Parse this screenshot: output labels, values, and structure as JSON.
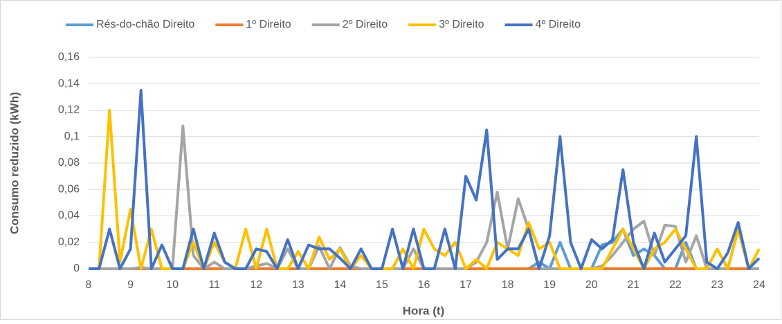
{
  "chart_data": {
    "type": "line",
    "y_label": "Consumo reduzido (kWh)",
    "x_label": "Hora (t)",
    "categories": [
      "8",
      null,
      null,
      null,
      "9",
      null,
      null,
      null,
      "10",
      null,
      null,
      null,
      "11",
      null,
      null,
      null,
      "12",
      null,
      null,
      null,
      "13",
      null,
      null,
      null,
      "14",
      null,
      null,
      null,
      "15",
      null,
      null,
      null,
      "16",
      null,
      null,
      null,
      "17",
      null,
      null,
      null,
      "18",
      null,
      null,
      null,
      "19",
      null,
      null,
      null,
      "20",
      null,
      null,
      null,
      "21",
      null,
      null,
      null,
      "22",
      null,
      null,
      null,
      "23",
      null,
      null,
      null,
      "24"
    ],
    "series": [
      {
        "name": "Rés-do-chão Direito",
        "color": "#5b9bd5",
        "values": [
          0,
          0,
          0,
          0,
          0,
          0,
          0,
          0,
          0,
          0,
          0,
          0,
          0,
          0,
          0,
          0,
          0,
          0,
          0,
          0,
          0,
          0,
          0,
          0,
          0,
          0,
          0,
          0,
          0,
          0,
          0,
          0,
          0,
          0,
          0,
          0,
          0,
          0,
          0,
          0,
          0,
          0,
          0,
          0.005,
          0,
          0.02,
          0,
          0,
          0,
          0.018,
          0.02,
          0.03,
          0.01,
          0.015,
          0.01,
          0,
          0,
          0.02,
          0,
          0,
          0,
          0,
          0,
          0,
          0
        ]
      },
      {
        "name": "1º Direito",
        "color": "#ed7d31",
        "values": [
          0,
          0,
          0,
          0,
          0,
          0,
          0,
          0,
          0,
          0,
          0,
          0,
          0,
          0,
          0,
          0,
          0,
          0,
          0,
          0,
          0,
          0,
          0,
          0,
          0,
          0,
          0,
          0,
          0,
          0,
          0,
          0,
          0,
          0,
          0,
          0,
          0,
          0,
          0,
          0,
          0,
          0,
          0,
          0,
          0,
          0,
          0,
          0,
          0,
          0,
          0,
          0,
          0,
          0,
          0,
          0,
          0,
          0,
          0,
          0,
          0,
          0,
          0,
          0,
          0
        ]
      },
      {
        "name": "2º Direito",
        "color": "#a5a5a5",
        "values": [
          0,
          0,
          0,
          0,
          0,
          0.001,
          0,
          0,
          0,
          0.108,
          0.01,
          0,
          0.005,
          0,
          0,
          0,
          0.002,
          0.004,
          0,
          0.015,
          0,
          0,
          0.017,
          0,
          0.016,
          0.002,
          0,
          0,
          0,
          0,
          0,
          0.015,
          0,
          0,
          0,
          0,
          0,
          0.005,
          0.02,
          0.058,
          0.015,
          0.053,
          0.03,
          0,
          0,
          0,
          0,
          0,
          0,
          0.002,
          0.01,
          0.02,
          0.03,
          0.036,
          0.01,
          0.033,
          0.032,
          0.005,
          0.025,
          0,
          0,
          0,
          0.03,
          0,
          0
        ]
      },
      {
        "name": "3º Direito",
        "color": "#ffc000",
        "values": [
          0,
          0,
          0.12,
          0.005,
          0.045,
          0,
          0.03,
          0,
          0,
          0,
          0.02,
          0,
          0.02,
          0.005,
          0,
          0.03,
          0,
          0.03,
          0,
          0,
          0.013,
          0,
          0.024,
          0.007,
          0.015,
          0,
          0.01,
          0,
          0,
          0,
          0.015,
          0,
          0.03,
          0.015,
          0.01,
          0.02,
          0,
          0.007,
          0,
          0.02,
          0.015,
          0.01,
          0.035,
          0.015,
          0.02,
          0,
          0,
          0,
          0,
          0,
          0.015,
          0.03,
          0.015,
          0,
          0.015,
          0.02,
          0.03,
          0.015,
          0,
          0,
          0.015,
          0,
          0.03,
          0,
          0.015
        ]
      },
      {
        "name": "4º Direito",
        "color": "#4472c4",
        "values": [
          0,
          0,
          0.03,
          0,
          0.015,
          0.135,
          0,
          0.018,
          0,
          0,
          0.03,
          0,
          0.027,
          0.005,
          0,
          0,
          0.015,
          0.013,
          0,
          0.022,
          0,
          0.018,
          0.015,
          0.015,
          0.008,
          0,
          0.015,
          0,
          0,
          0.03,
          0,
          0.03,
          0,
          0,
          0.03,
          0,
          0.07,
          0.052,
          0.105,
          0.007,
          0.015,
          0.015,
          0.03,
          0,
          0.025,
          0.1,
          0.02,
          0,
          0.022,
          0.015,
          0.022,
          0.075,
          0.02,
          0,
          0.027,
          0.005,
          0.015,
          0.025,
          0.1,
          0.005,
          0,
          0.012,
          0.035,
          0,
          0.008
        ]
      }
    ],
    "ylim": [
      0,
      0.16
    ],
    "yticks": [
      0,
      {
        "value": 0.02,
        "label": "0,02"
      },
      {
        "value": 0.04,
        "label": "0,04"
      },
      {
        "value": 0.06,
        "label": "0,06"
      },
      {
        "value": 0.08,
        "label": "0,08"
      },
      {
        "value": 0.1,
        "label": "0,1"
      },
      {
        "value": 0.12,
        "label": "0,12"
      },
      {
        "value": 0.14,
        "label": "0,14"
      },
      {
        "value": 0.16,
        "label": "0,16"
      }
    ],
    "grid": true,
    "legend": "top"
  }
}
